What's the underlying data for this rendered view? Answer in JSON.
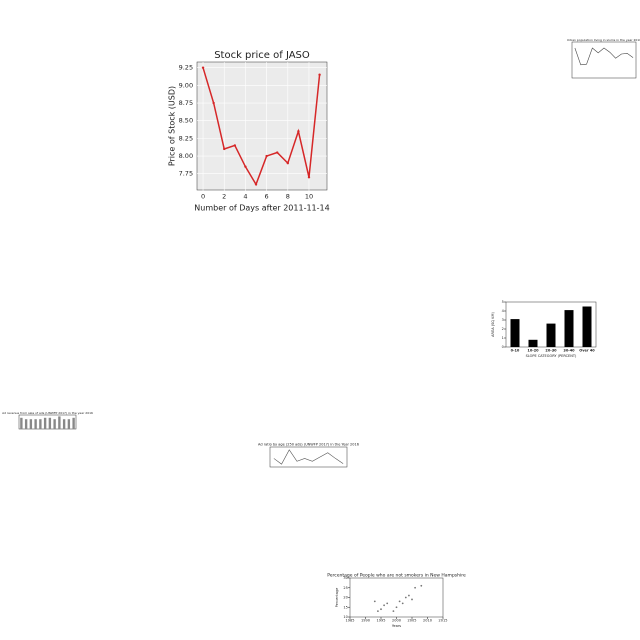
{
  "chart_data": [
    {
      "type": "line",
      "title": "Stock price of JASO",
      "xlabel": "Number of Days after 2011-11-14",
      "ylabel": "Price of Stock (USD)",
      "x": [
        0,
        1,
        2,
        3,
        4,
        5,
        6,
        7,
        8,
        9,
        10,
        11
      ],
      "values": [
        9.25,
        8.75,
        8.1,
        8.15,
        7.85,
        7.6,
        8.0,
        8.05,
        7.9,
        8.35,
        7.7,
        9.15
      ],
      "color": "#d62728",
      "xlim": [
        -0.57,
        11.7
      ],
      "ylim": [
        7.52,
        9.33
      ],
      "xticks": [
        0,
        2,
        4,
        6,
        8,
        10
      ],
      "yticks": [
        {
          "value": 7.75,
          "label": "7.75"
        },
        {
          "value": 8,
          "label": "8.00"
        },
        {
          "value": 8.25,
          "label": "8.25"
        },
        {
          "value": 8.5,
          "label": "8.50"
        },
        {
          "value": 8.75,
          "label": "8.75"
        },
        {
          "value": 9,
          "label": "9.00"
        },
        {
          "value": 9.25,
          "label": "9.25"
        }
      ],
      "grid": true
    },
    {
      "type": "line",
      "title": "Urban population living in slums in the year 2016",
      "categories": [
        null,
        null,
        null,
        null,
        null,
        null,
        null,
        null,
        null,
        null,
        null
      ],
      "values": [
        8,
        5.2,
        5.3,
        8,
        7.2,
        8,
        7.3,
        6.3,
        7,
        7.1,
        6.4
      ],
      "color": "#444444",
      "ylim": [
        3,
        9
      ],
      "grid": false
    },
    {
      "type": "bar",
      "xlabel": "SLOPE CATEGORY (PERCENT)",
      "ylabel": "AREA (SQ KM)",
      "categories": [
        "0-10",
        "10-20",
        "20-30",
        "30-40",
        "Over 40"
      ],
      "values": [
        3.1,
        0.8,
        2.6,
        4.1,
        4.5
      ],
      "color": "#000000",
      "ylim": [
        0,
        5
      ],
      "yticks": [
        0,
        1,
        2,
        3,
        4,
        5
      ],
      "grid": false
    },
    {
      "type": "bar",
      "title": "Ad revenue from sale of ads (UNWFP 2017) in the year 2016",
      "categories": [
        null,
        null,
        null,
        null,
        null,
        null,
        null,
        null,
        null,
        null,
        null,
        null
      ],
      "values": [
        8,
        7,
        7,
        7,
        7,
        8,
        8,
        7,
        9,
        7,
        7,
        8
      ],
      "color": "#888888",
      "ylim": [
        0,
        10
      ],
      "grid": false
    },
    {
      "type": "line",
      "title": "Ad ratio by age (250 ads) (UNWFP 2017) in the Year 2016",
      "categories": [
        null,
        null,
        null,
        null,
        null,
        null,
        null,
        null,
        null,
        null
      ],
      "values": [
        3,
        1,
        6,
        2,
        3,
        2,
        3.5,
        5,
        3,
        1.2
      ],
      "color": "#555555",
      "ylim": [
        0,
        7
      ],
      "grid": false
    },
    {
      "type": "scatter",
      "title": "Percentage of People who are not smokers in New Hampshire",
      "xlabel": "Years",
      "ylabel": "Percentage",
      "x": [
        1993,
        1994,
        1995,
        1996,
        1997,
        1999,
        2000,
        2001,
        2002,
        2003,
        2004,
        2005,
        2006,
        2008
      ],
      "values": [
        18,
        13,
        14,
        16,
        17,
        13,
        15,
        18,
        17,
        20,
        21,
        19,
        25,
        26
      ],
      "color": "#777777",
      "xlim": [
        1985,
        2015
      ],
      "ylim": [
        10,
        30
      ],
      "xticks": [
        1985,
        1990,
        1995,
        2000,
        2005,
        2010,
        2015
      ],
      "yticks": [
        10,
        15,
        20,
        25,
        30
      ],
      "grid": false
    }
  ]
}
